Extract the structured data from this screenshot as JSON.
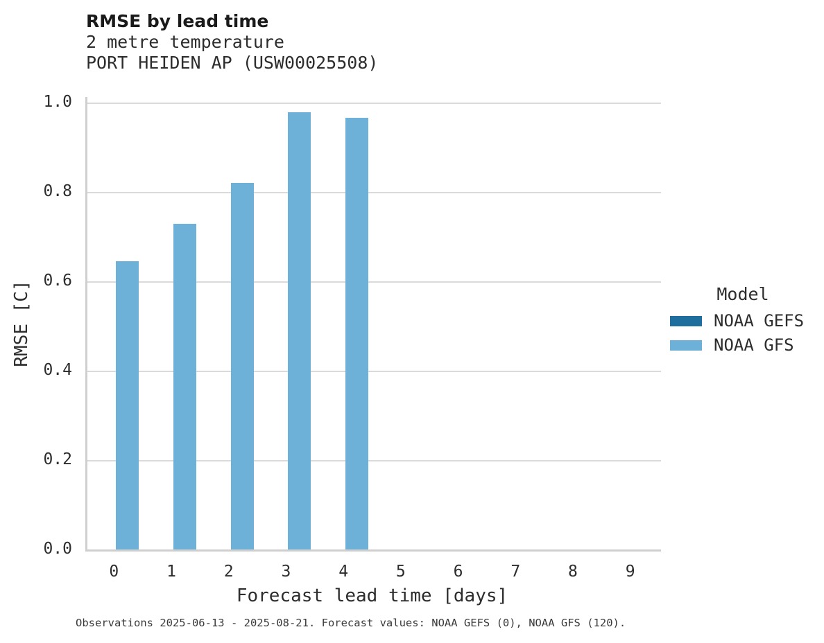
{
  "chart_data": {
    "type": "bar",
    "title": "RMSE by lead time",
    "subtitle_lines": [
      "2 metre temperature",
      "PORT HEIDEN AP (USW00025508)"
    ],
    "xlabel": "Forecast lead time [days]",
    "ylabel": "RMSE [C]",
    "categories": [
      "0",
      "1",
      "2",
      "3",
      "4",
      "5",
      "6",
      "7",
      "8",
      "9"
    ],
    "ylim": [
      0.0,
      1.0
    ],
    "yticks": [
      0.0,
      0.2,
      0.4,
      0.6,
      0.8,
      1.0
    ],
    "grid": "horizontal",
    "legend": {
      "title": "Model",
      "position": "right"
    },
    "series": [
      {
        "name": "NOAA GEFS",
        "color": "#1e6e9e",
        "values": [
          null,
          null,
          null,
          null,
          null,
          null,
          null,
          null,
          null,
          null
        ]
      },
      {
        "name": "NOAA GFS",
        "color": "#6db1d8",
        "values": [
          0.645,
          0.728,
          0.82,
          0.978,
          0.966,
          null,
          null,
          null,
          null,
          null
        ]
      }
    ],
    "caption": "Observations 2025-06-13 - 2025-08-21. Forecast values: NOAA GEFS (0), NOAA GFS (120)."
  }
}
